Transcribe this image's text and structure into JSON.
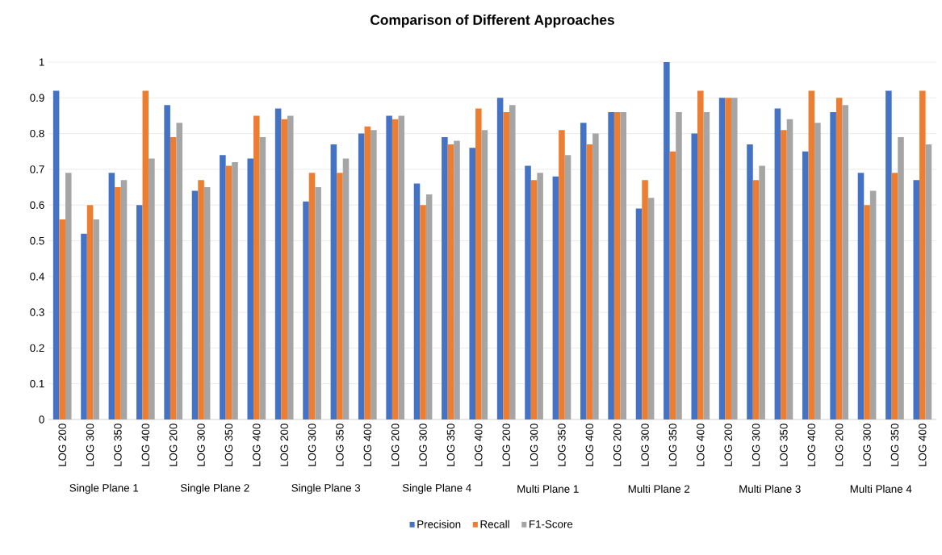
{
  "chart_data": {
    "type": "bar",
    "title": "Comparison of Different  Approaches",
    "categories": [
      "LOG 200",
      "LOG 300",
      "LOG 350",
      "LOG 400",
      "LOG 200",
      "LOG 300",
      "LOG 350",
      "LOG 400",
      "LOG 200",
      "LOG 300",
      "LOG 350",
      "LOG 400",
      "LOG 200",
      "LOG 300",
      "LOG 350",
      "LOG 400",
      "LOG 200",
      "LOG 300",
      "LOG 350",
      "LOG 400",
      "LOG 200",
      "LOG 300",
      "LOG 350",
      "LOG 400",
      "LOG 200",
      "LOG 300",
      "LOG 350",
      "LOG 400",
      "LOG 200",
      "LOG 300",
      "LOG 350",
      "LOG 400"
    ],
    "annotations": [
      "Single Plane 1",
      "Single Plane 2",
      "Single Plane 3",
      "Single Plane 4",
      "Multi Plane 1",
      "Multi Plane 2",
      "Multi Plane 3",
      "Multi Plane 4"
    ],
    "series": [
      {
        "name": "Precision",
        "color": "#4472c4",
        "values": [
          0.92,
          0.52,
          0.69,
          0.6,
          0.88,
          0.64,
          0.74,
          0.73,
          0.87,
          0.61,
          0.77,
          0.8,
          0.85,
          0.66,
          0.79,
          0.76,
          0.9,
          0.71,
          0.68,
          0.83,
          0.86,
          0.59,
          1.0,
          0.8,
          0.9,
          0.77,
          0.87,
          0.75,
          0.86,
          0.69,
          0.92,
          0.67
        ]
      },
      {
        "name": "Recall",
        "color": "#ed7d31",
        "values": [
          0.56,
          0.6,
          0.65,
          0.92,
          0.79,
          0.67,
          0.71,
          0.85,
          0.84,
          0.69,
          0.69,
          0.82,
          0.84,
          0.6,
          0.77,
          0.87,
          0.86,
          0.67,
          0.81,
          0.77,
          0.86,
          0.67,
          0.75,
          0.92,
          0.9,
          0.67,
          0.81,
          0.92,
          0.9,
          0.6,
          0.69,
          0.92
        ]
      },
      {
        "name": "F1-Score",
        "color": "#a5a5a5",
        "values": [
          0.69,
          0.56,
          0.67,
          0.73,
          0.83,
          0.65,
          0.72,
          0.79,
          0.85,
          0.65,
          0.73,
          0.81,
          0.85,
          0.63,
          0.78,
          0.81,
          0.88,
          0.69,
          0.74,
          0.8,
          0.86,
          0.62,
          0.86,
          0.86,
          0.9,
          0.71,
          0.84,
          0.83,
          0.88,
          0.64,
          0.79,
          0.77
        ]
      }
    ],
    "ylim": [
      0,
      1
    ],
    "yticks": [
      0,
      0.1,
      0.2,
      0.3,
      0.4,
      0.5,
      0.6,
      0.7,
      0.8,
      0.9,
      1
    ],
    "grid": "y",
    "legend": "bottom"
  }
}
